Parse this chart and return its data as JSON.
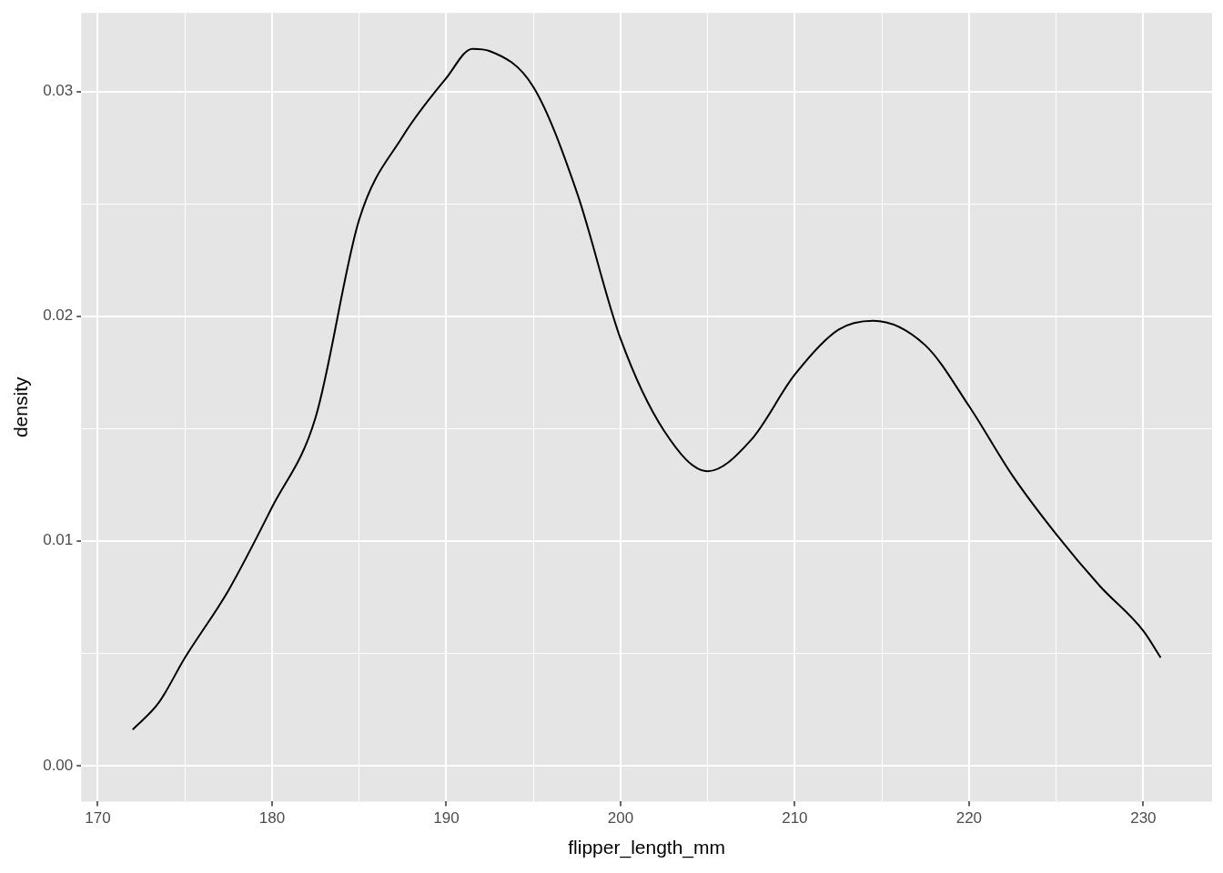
{
  "chart_data": {
    "type": "line",
    "xlabel": "flipper_length_mm",
    "ylabel": "density",
    "color": "#000000",
    "marker": "none",
    "grid": true,
    "legend": false,
    "xlim": [
      169.05,
      233.95
    ],
    "ylim": [
      -0.0016,
      0.0335
    ],
    "xticks": [
      170,
      {
        "value": 175,
        "label": null
      },
      180,
      {
        "value": 185,
        "label": null
      },
      190,
      {
        "value": 195,
        "label": null
      },
      200,
      {
        "value": 205,
        "label": null
      },
      210,
      {
        "value": 215,
        "label": null
      },
      220,
      {
        "value": 225,
        "label": null
      },
      230
    ],
    "yticks": [
      {
        "value": 0,
        "label": "0.00"
      },
      {
        "value": 0.005,
        "label": null
      },
      {
        "value": 0.01,
        "label": "0.01"
      },
      {
        "value": 0.015,
        "label": null
      },
      {
        "value": 0.02,
        "label": "0.02"
      },
      {
        "value": 0.025,
        "label": null
      },
      {
        "value": 0.03,
        "label": "0.03"
      }
    ],
    "x": [
      172,
      173.5,
      175,
      177.5,
      180,
      182.5,
      185,
      187.5,
      190,
      191.5,
      192.5,
      195,
      197.5,
      200,
      202.5,
      205,
      207.5,
      210,
      212.5,
      214.5,
      217.5,
      220,
      222.5,
      225,
      227.5,
      230,
      231
    ],
    "values": [
      0.0016,
      0.0028,
      0.0048,
      0.0078,
      0.0115,
      0.0155,
      0.0243,
      0.028,
      0.0306,
      0.0319,
      0.0318,
      0.0302,
      0.0255,
      0.019,
      0.0149,
      0.0131,
      0.0145,
      0.0174,
      0.0194,
      0.0198,
      0.0187,
      0.016,
      0.0129,
      0.0103,
      0.008,
      0.006,
      0.0048
    ]
  }
}
